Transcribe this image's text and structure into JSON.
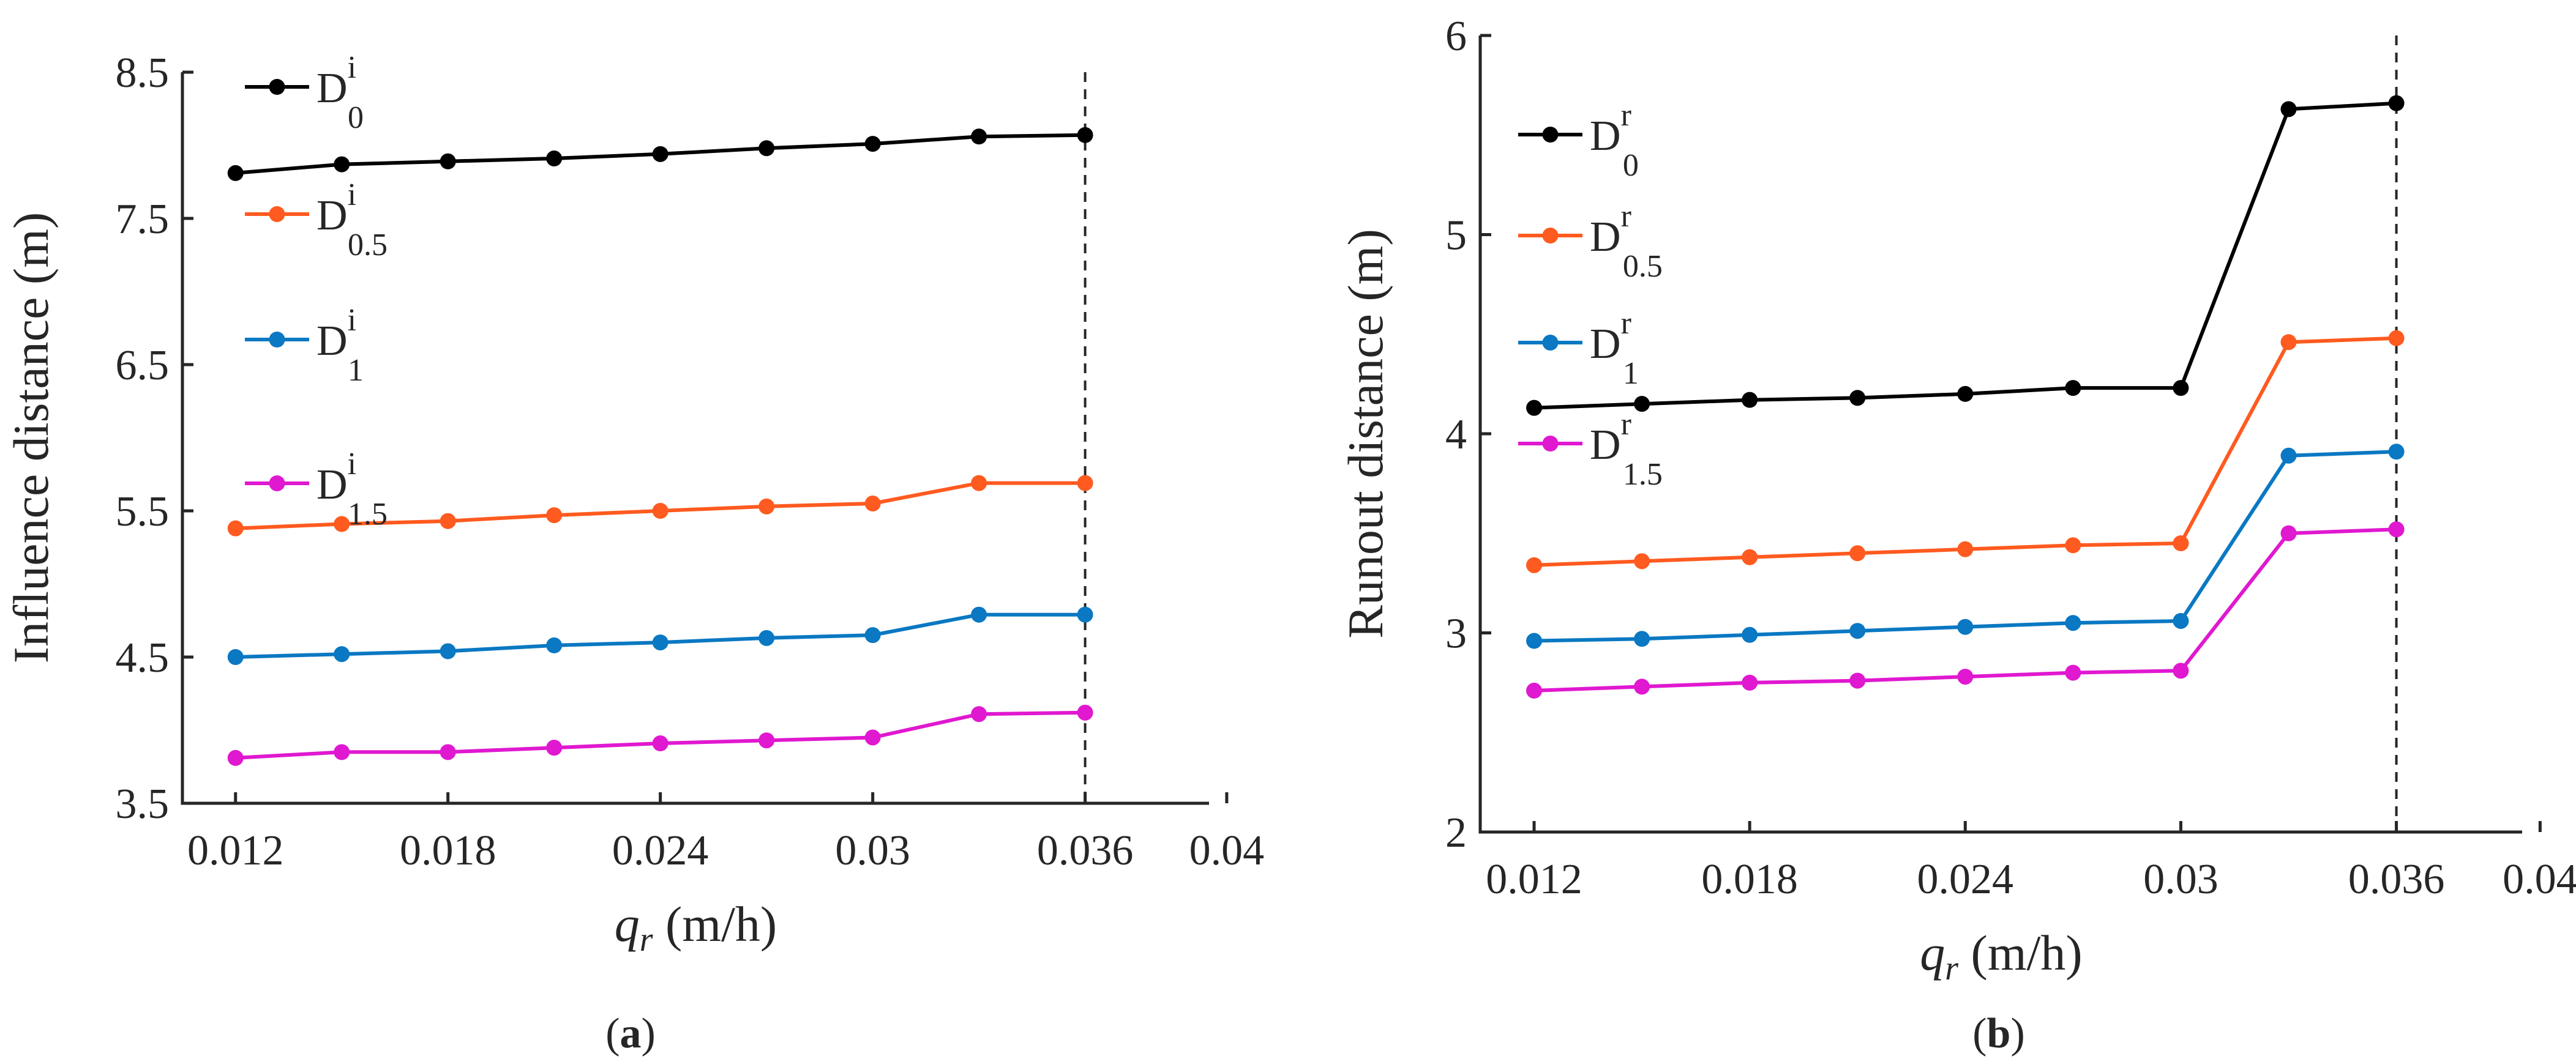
{
  "chart_data": [
    {
      "type": "line",
      "panel_label": "(a)",
      "xlabel": "q",
      "xlabel_sub": "r",
      "xlabel_units": "(m/h)",
      "ylabel": "Influence distance (m)",
      "xlim": [
        0.0105,
        0.0395
      ],
      "ylim": [
        3.5,
        8.5
      ],
      "xticks": [
        0.012,
        0.018,
        0.024,
        0.03,
        0.036,
        0.04
      ],
      "xtick_labels": [
        "0.012",
        "0.018",
        "0.024",
        "0.03",
        "0.036",
        "0.04"
      ],
      "yticks": [
        3.5,
        4.5,
        5.5,
        6.5,
        7.5,
        8.5
      ],
      "ytick_labels": [
        "3.5",
        "4.5",
        "5.5",
        "6.5",
        "7.5",
        "8.5"
      ],
      "reference_x": 0.036,
      "x": [
        0.012,
        0.015,
        0.018,
        0.021,
        0.024,
        0.027,
        0.03,
        0.033,
        0.036
      ],
      "series": [
        {
          "name": "D",
          "sup": "i",
          "sub": "0",
          "color": "#000000",
          "values": [
            7.81,
            7.87,
            7.89,
            7.91,
            7.94,
            7.98,
            8.01,
            8.06,
            8.07
          ]
        },
        {
          "name": "D",
          "sup": "i",
          "sub": "0.5",
          "color": "#ff5a1f",
          "values": [
            5.38,
            5.41,
            5.43,
            5.47,
            5.5,
            5.53,
            5.55,
            5.69,
            5.69
          ]
        },
        {
          "name": "D",
          "sup": "i",
          "sub": "1",
          "color": "#0a78c2",
          "values": [
            4.5,
            4.52,
            4.54,
            4.58,
            4.6,
            4.63,
            4.65,
            4.79,
            4.79
          ]
        },
        {
          "name": "D",
          "sup": "i",
          "sub": "1.5",
          "color": "#e018d0",
          "values": [
            3.81,
            3.85,
            3.85,
            3.88,
            3.91,
            3.93,
            3.95,
            4.11,
            4.12
          ]
        }
      ],
      "legend_position": "top-left"
    },
    {
      "type": "line",
      "panel_label": "(b)",
      "xlabel": "q",
      "xlabel_sub": "r",
      "xlabel_units": "(m/h)",
      "ylabel": "Runout distance (m)",
      "xlim": [
        0.0105,
        0.0395
      ],
      "ylim": [
        2,
        6
      ],
      "xticks": [
        0.012,
        0.018,
        0.024,
        0.03,
        0.036,
        0.04
      ],
      "xtick_labels": [
        "0.012",
        "0.018",
        "0.024",
        "0.03",
        "0.036",
        "0.04"
      ],
      "yticks": [
        2,
        3,
        4,
        5,
        6
      ],
      "ytick_labels": [
        "2",
        "3",
        "4",
        "5",
        "6"
      ],
      "reference_x": 0.036,
      "x": [
        0.012,
        0.015,
        0.018,
        0.021,
        0.024,
        0.027,
        0.03,
        0.033,
        0.036
      ],
      "series": [
        {
          "name": "D",
          "sup": "r",
          "sub": "0",
          "color": "#000000",
          "values": [
            4.13,
            4.15,
            4.17,
            4.18,
            4.2,
            4.23,
            4.23,
            5.63,
            5.66
          ]
        },
        {
          "name": "D",
          "sup": "r",
          "sub": "0.5",
          "color": "#ff5a1f",
          "values": [
            3.34,
            3.36,
            3.38,
            3.4,
            3.42,
            3.44,
            3.45,
            4.46,
            4.48
          ]
        },
        {
          "name": "D",
          "sup": "r",
          "sub": "1",
          "color": "#0a78c2",
          "values": [
            2.96,
            2.97,
            2.99,
            3.01,
            3.03,
            3.05,
            3.06,
            3.89,
            3.91
          ]
        },
        {
          "name": "D",
          "sup": "r",
          "sub": "1.5",
          "color": "#e018d0",
          "values": [
            2.71,
            2.73,
            2.75,
            2.76,
            2.78,
            2.8,
            2.81,
            3.5,
            3.52
          ]
        }
      ],
      "legend_position": "top-left"
    }
  ]
}
